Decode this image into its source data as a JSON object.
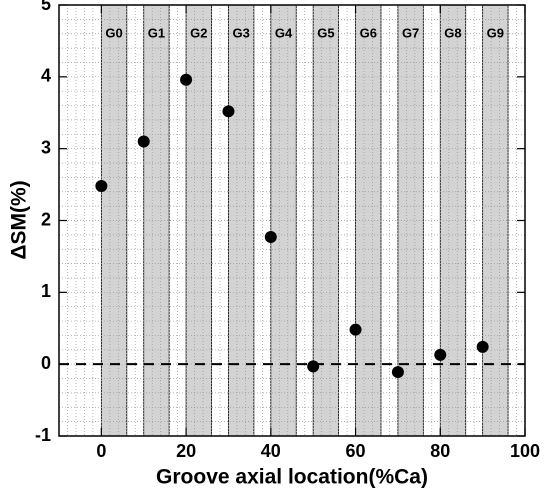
{
  "chart_data": {
    "type": "scatter",
    "x_label": "Groove axial location(%Ca)",
    "y_label": "ΔSM(%)",
    "x": [
      0,
      10,
      20,
      30,
      40,
      50,
      60,
      70,
      80,
      90
    ],
    "series": [
      {
        "color": "#000000",
        "values": [
          2.48,
          3.1,
          3.96,
          3.52,
          1.77,
          -0.03,
          0.48,
          -0.11,
          0.13,
          0.24
        ]
      }
    ],
    "xlim": [
      -10,
      100
    ],
    "xticks": [
      0,
      20,
      40,
      60,
      80,
      100
    ],
    "ylim": [
      -1,
      5
    ],
    "yticks": [
      -1,
      0,
      1,
      2,
      3,
      4,
      5
    ],
    "bands": [
      {
        "label": "G0",
        "start": 0,
        "end": 6
      },
      {
        "label": "G1",
        "start": 10,
        "end": 16
      },
      {
        "label": "G2",
        "start": 20,
        "end": 26
      },
      {
        "label": "G3",
        "start": 30,
        "end": 36
      },
      {
        "label": "G4",
        "start": 40,
        "end": 46
      },
      {
        "label": "G5",
        "start": 50,
        "end": 56
      },
      {
        "label": "G6",
        "start": 60,
        "end": 66
      },
      {
        "label": "G7",
        "start": 70,
        "end": 76
      },
      {
        "label": "G8",
        "start": 80,
        "end": 86
      },
      {
        "label": "G9",
        "start": 90,
        "end": 96
      }
    ],
    "band_color": "#d3d3d3",
    "reference_line": 0,
    "grid": true
  }
}
